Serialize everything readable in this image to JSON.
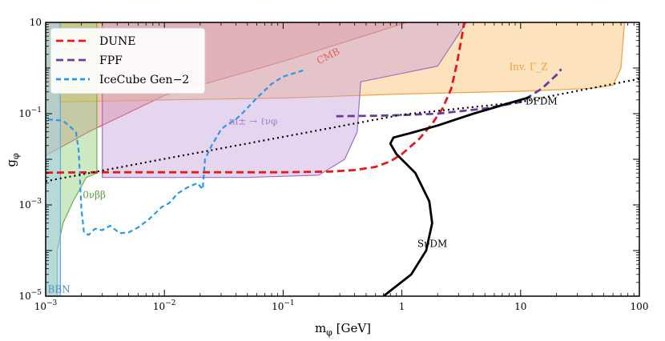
{
  "chart_data": {
    "type": "line",
    "xscale": "log",
    "yscale": "log",
    "xlim": [
      0.001,
      100
    ],
    "ylim": [
      1e-05,
      10
    ],
    "xlabel": "m_φ [GeV]",
    "ylabel": "g_φ",
    "x_ticks": [
      {
        "value": 0.001,
        "base": "10",
        "exp": "−3"
      },
      {
        "value": 0.01,
        "base": "10",
        "exp": "−2"
      },
      {
        "value": 0.1,
        "base": "10",
        "exp": "−1"
      },
      {
        "value": 1,
        "text": "1"
      },
      {
        "value": 10,
        "text": "10"
      },
      {
        "value": 100,
        "text": "100"
      }
    ],
    "y_ticks": [
      {
        "value": 1e-05,
        "base": "10",
        "exp": "−5"
      },
      {
        "value": 0.001,
        "base": "10",
        "exp": "−3"
      },
      {
        "value": 0.1,
        "base": "10",
        "exp": "−1"
      },
      {
        "value": 10,
        "text": "10"
      }
    ],
    "legend": {
      "position": "top-left",
      "entries": [
        {
          "label": "DUNE",
          "color": "#e31a1c",
          "style": "dashed"
        },
        {
          "label": "FPF",
          "color": "#6a3d9a",
          "style": "dashed"
        },
        {
          "label": "IceCube Gen−2",
          "color": "#2b97e8",
          "style": "dashed"
        }
      ]
    },
    "regions": [
      {
        "name": "CMB",
        "label": "CMB",
        "fill": "#e88080",
        "stroke": "#e05050",
        "opacity": 0.45,
        "label_color": "#e06060",
        "label_at": [
          0.2,
          1.2
        ],
        "points": [
          [
            0.001,
            0.012
          ],
          [
            0.0023,
            0.04
          ],
          [
            0.01,
            0.25
          ],
          [
            0.1,
            1.4
          ],
          [
            1.1,
            10
          ],
          [
            0.001,
            10
          ]
        ]
      },
      {
        "name": "Inv. Gamma_Z",
        "label": "Inv. Γ_Z",
        "fill": "#fbbf6e",
        "stroke": "#f0a040",
        "opacity": 0.45,
        "label_color": "#f0a040",
        "label_at": [
          8,
          0.9
        ],
        "points": [
          [
            0.0013,
            0.18
          ],
          [
            0.01,
            0.2
          ],
          [
            0.1,
            0.22
          ],
          [
            1,
            0.27
          ],
          [
            10,
            0.31
          ],
          [
            40,
            0.36
          ],
          [
            60,
            0.42
          ],
          [
            70,
            1
          ],
          [
            75,
            10
          ],
          [
            0.0013,
            10
          ]
        ]
      },
      {
        "name": "m-pm decay",
        "label": "m± → ℓνφ",
        "fill": "#c09ad8",
        "stroke": "#a070c0",
        "opacity": 0.42,
        "label_color": "#a884c8",
        "label_at": [
          0.035,
          0.058
        ],
        "points": [
          [
            0.003,
            0.004
          ],
          [
            0.05,
            0.004
          ],
          [
            0.2,
            0.0045
          ],
          [
            0.33,
            0.01
          ],
          [
            0.42,
            0.04
          ],
          [
            0.45,
            0.5
          ],
          [
            2,
            1.1
          ],
          [
            3.5,
            10
          ],
          [
            0.003,
            10
          ]
        ]
      },
      {
        "name": "0nubb",
        "label": "0νββ",
        "fill": "#8fce7a",
        "stroke": "#6ab04f",
        "opacity": 0.45,
        "label_color": "#5aa040",
        "label_at": [
          0.00205,
          0.0014
        ],
        "points": [
          [
            0.00125,
            1e-05
          ],
          [
            0.00125,
            0.0001
          ],
          [
            0.0014,
            0.0004
          ],
          [
            0.0017,
            0.0012
          ],
          [
            0.0022,
            0.004
          ],
          [
            0.0027,
            0.005
          ],
          [
            0.0027,
            10
          ],
          [
            0.001,
            10
          ],
          [
            0.001,
            1e-05
          ]
        ]
      },
      {
        "name": "BBN",
        "label": "BBN",
        "fill": "#a7cde8",
        "stroke": "#6aa8d8",
        "opacity": 0.55,
        "label_color": "#4a90c8",
        "label_at": [
          0.00104,
          1.2e-05
        ],
        "points": [
          [
            0.001,
            1e-05
          ],
          [
            0.00133,
            1e-05
          ],
          [
            0.00133,
            10
          ],
          [
            0.001,
            10
          ]
        ]
      }
    ],
    "series": [
      {
        "name": "DUNE",
        "color": "#e31a1c",
        "dash": "9 5",
        "width": 2.8,
        "points": [
          [
            0.001,
            0.0051
          ],
          [
            0.003,
            0.0052
          ],
          [
            0.01,
            0.0052
          ],
          [
            0.03,
            0.0052
          ],
          [
            0.1,
            0.0052
          ],
          [
            0.25,
            0.0054
          ],
          [
            0.4,
            0.0058
          ],
          [
            0.6,
            0.0068
          ],
          [
            0.8,
            0.009
          ],
          [
            1,
            0.013
          ],
          [
            1.4,
            0.028
          ],
          [
            1.8,
            0.06
          ],
          [
            2.2,
            0.13
          ],
          [
            2.6,
            0.35
          ],
          [
            2.9,
            1.2
          ],
          [
            3.2,
            5
          ],
          [
            3.35,
            10
          ]
        ]
      },
      {
        "name": "FPF",
        "color": "#6a3d9a",
        "dash": "9 5",
        "width": 2.8,
        "points": [
          [
            0.28,
            0.088
          ],
          [
            0.6,
            0.09
          ],
          [
            1,
            0.093
          ],
          [
            2,
            0.1
          ],
          [
            5,
            0.13
          ],
          [
            10,
            0.18
          ],
          [
            15,
            0.35
          ],
          [
            20,
            0.7
          ],
          [
            22,
            0.95
          ]
        ]
      },
      {
        "name": "IceCube Gen−2",
        "color": "#2b97e8",
        "dash": "6 4",
        "width": 2.2,
        "points": [
          [
            0.00105,
            0.075
          ],
          [
            0.0014,
            0.07
          ],
          [
            0.0018,
            0.04
          ],
          [
            0.0019,
            0.015
          ],
          [
            0.00195,
            0.003
          ],
          [
            0.002,
            0.0008
          ],
          [
            0.0021,
            0.00025
          ],
          [
            0.0023,
            0.00022
          ],
          [
            0.0026,
            0.0003
          ],
          [
            0.003,
            0.00028
          ],
          [
            0.0035,
            0.00035
          ],
          [
            0.0042,
            0.00024
          ],
          [
            0.005,
            0.00025
          ],
          [
            0.006,
            0.00032
          ],
          [
            0.0075,
            0.0005
          ],
          [
            0.0095,
            0.0009
          ],
          [
            0.011,
            0.0011
          ],
          [
            0.013,
            0.0018
          ],
          [
            0.016,
            0.0025
          ],
          [
            0.019,
            0.003
          ],
          [
            0.021,
            0.0022
          ],
          [
            0.022,
            0.01
          ],
          [
            0.025,
            0.02
          ],
          [
            0.03,
            0.045
          ],
          [
            0.033,
            0.055
          ],
          [
            0.04,
            0.075
          ],
          [
            0.045,
            0.1
          ],
          [
            0.06,
            0.22
          ],
          [
            0.08,
            0.45
          ],
          [
            0.1,
            0.65
          ],
          [
            0.15,
            0.9
          ]
        ]
      },
      {
        "name": "SνDM",
        "color": "#000000",
        "dash": "",
        "width": 2.8,
        "points": [
          [
            0.7,
            1e-05
          ],
          [
            1.2,
            3e-05
          ],
          [
            1.6,
            0.0001
          ],
          [
            1.8,
            0.0004
          ],
          [
            1.7,
            0.0012
          ],
          [
            1.3,
            0.005
          ],
          [
            0.9,
            0.013
          ],
          [
            0.8,
            0.022
          ],
          [
            0.85,
            0.03
          ],
          [
            1.2,
            0.038
          ],
          [
            2,
            0.055
          ],
          [
            4,
            0.1
          ],
          [
            8,
            0.17
          ],
          [
            12,
            0.23
          ]
        ]
      },
      {
        "name": "DFDM",
        "color": "#000000",
        "dash": "2 4",
        "width": 2.2,
        "points": [
          [
            0.001,
            0.0033
          ],
          [
            0.01,
            0.0102
          ],
          [
            0.1,
            0.031
          ],
          [
            1,
            0.095
          ],
          [
            10,
            0.18
          ],
          [
            100,
            0.58
          ]
        ]
      }
    ],
    "annotations": [
      {
        "text": "SνDM",
        "at": [
          1.35,
          0.00012
        ],
        "color": "#000000"
      },
      {
        "text": "DFDM",
        "at": [
          11,
          0.16
        ],
        "color": "#000000"
      }
    ]
  }
}
